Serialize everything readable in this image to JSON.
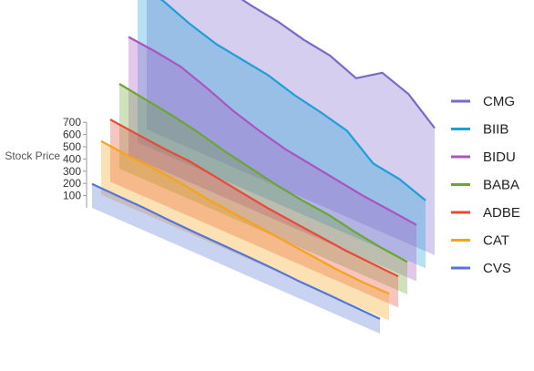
{
  "chart_data": {
    "type": "area",
    "title": "",
    "ylabel": "Stock Price",
    "yticks": [
      100,
      200,
      300,
      400,
      500,
      600,
      700
    ],
    "ylim": [
      0,
      700
    ],
    "legend_position": "right",
    "n_points": 12,
    "series": [
      {
        "name": "CMG",
        "color": "#7b68c9",
        "values": [
          640,
          630,
          655,
          620,
          600,
          585,
          560,
          545,
          505,
          565,
          530,
          450
        ]
      },
      {
        "name": "BIIB",
        "color": "#1e9fd8",
        "values": [
          560,
          540,
          500,
          470,
          455,
          440,
          410,
          390,
          365,
          290,
          275,
          240
        ]
      },
      {
        "name": "BIDU",
        "color": "#a855c2",
        "values": [
          420,
          410,
          395,
          360,
          320,
          290,
          265,
          250,
          235,
          220,
          210,
          200
        ]
      },
      {
        "name": "BABA",
        "color": "#6aa632",
        "values": [
          300,
          285,
          270,
          250,
          225,
          205,
          185,
          170,
          160,
          140,
          125,
          115
        ]
      },
      {
        "name": "ADBE",
        "color": "#e64a3b",
        "values": [
          220,
          210,
          200,
          195,
          180,
          165,
          150,
          140,
          130,
          120,
          115,
          110
        ]
      },
      {
        "name": "CAT",
        "color": "#f5a31a",
        "values": [
          190,
          180,
          175,
          165,
          150,
          140,
          130,
          120,
          110,
          100,
          95,
          95
        ]
      },
      {
        "name": "CVS",
        "color": "#5575d8",
        "values": [
          85,
          82,
          80,
          75,
          72,
          70,
          68,
          65,
          60,
          58,
          55,
          52
        ]
      }
    ]
  }
}
